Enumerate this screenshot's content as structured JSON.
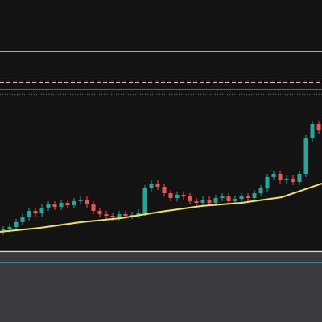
{
  "chart_data": {
    "type": "candlestick",
    "up_color": "#26a69a",
    "down_color": "#ef5350",
    "candles": [
      [
        24,
        31,
        20,
        27
      ],
      [
        27,
        34,
        23,
        30
      ],
      [
        30,
        40,
        26,
        36
      ],
      [
        36,
        46,
        32,
        42
      ],
      [
        42,
        54,
        38,
        50
      ],
      [
        50,
        54,
        43,
        47
      ],
      [
        47,
        58,
        43,
        54
      ],
      [
        54,
        62,
        50,
        58
      ],
      [
        58,
        62,
        51,
        55
      ],
      [
        55,
        64,
        51,
        60
      ],
      [
        60,
        64,
        53,
        57
      ],
      [
        57,
        66,
        53,
        62
      ],
      [
        62,
        68,
        58,
        64
      ],
      [
        64,
        68,
        54,
        58
      ],
      [
        58,
        62,
        46,
        50
      ],
      [
        50,
        54,
        42,
        46
      ],
      [
        46,
        50,
        40,
        44
      ],
      [
        44,
        48,
        38,
        42
      ],
      [
        42,
        50,
        38,
        46
      ],
      [
        46,
        50,
        40,
        44
      ],
      [
        44,
        49,
        40,
        45
      ],
      [
        45,
        52,
        41,
        48
      ],
      [
        48,
        82,
        44,
        78
      ],
      [
        78,
        88,
        74,
        84
      ],
      [
        84,
        88,
        76,
        80
      ],
      [
        80,
        84,
        68,
        72
      ],
      [
        72,
        76,
        62,
        66
      ],
      [
        66,
        74,
        62,
        70
      ],
      [
        70,
        74,
        64,
        68
      ],
      [
        68,
        72,
        58,
        62
      ],
      [
        62,
        66,
        56,
        60
      ],
      [
        60,
        68,
        56,
        64
      ],
      [
        64,
        68,
        56,
        60
      ],
      [
        60,
        70,
        56,
        66
      ],
      [
        66,
        72,
        62,
        68
      ],
      [
        68,
        72,
        58,
        62
      ],
      [
        62,
        69,
        58,
        65
      ],
      [
        65,
        72,
        61,
        68
      ],
      [
        68,
        72,
        62,
        66
      ],
      [
        66,
        76,
        62,
        72
      ],
      [
        72,
        82,
        68,
        78
      ],
      [
        78,
        96,
        74,
        92
      ],
      [
        92,
        100,
        88,
        96
      ],
      [
        96,
        100,
        84,
        88
      ],
      [
        88,
        94,
        84,
        90
      ],
      [
        90,
        94,
        82,
        86
      ],
      [
        86,
        100,
        82,
        96
      ],
      [
        96,
        144,
        92,
        140
      ],
      [
        140,
        162,
        136,
        158
      ],
      [
        158,
        162,
        146,
        150
      ]
    ],
    "moving_average": {
      "color": "#f2e25c",
      "values": [
        24,
        29,
        36,
        41,
        49,
        56,
        60,
        67,
        84
      ]
    },
    "levels": [
      {
        "color": "#e0a050",
        "style": "solid",
        "value": 249
      },
      {
        "color": "#e8b0c8",
        "style": "dashed",
        "value": 210
      },
      {
        "color": "#b03850",
        "style": "solid",
        "value": 201
      },
      {
        "color": "#3f7f86",
        "style": "dotted",
        "value": 195
      }
    ]
  }
}
